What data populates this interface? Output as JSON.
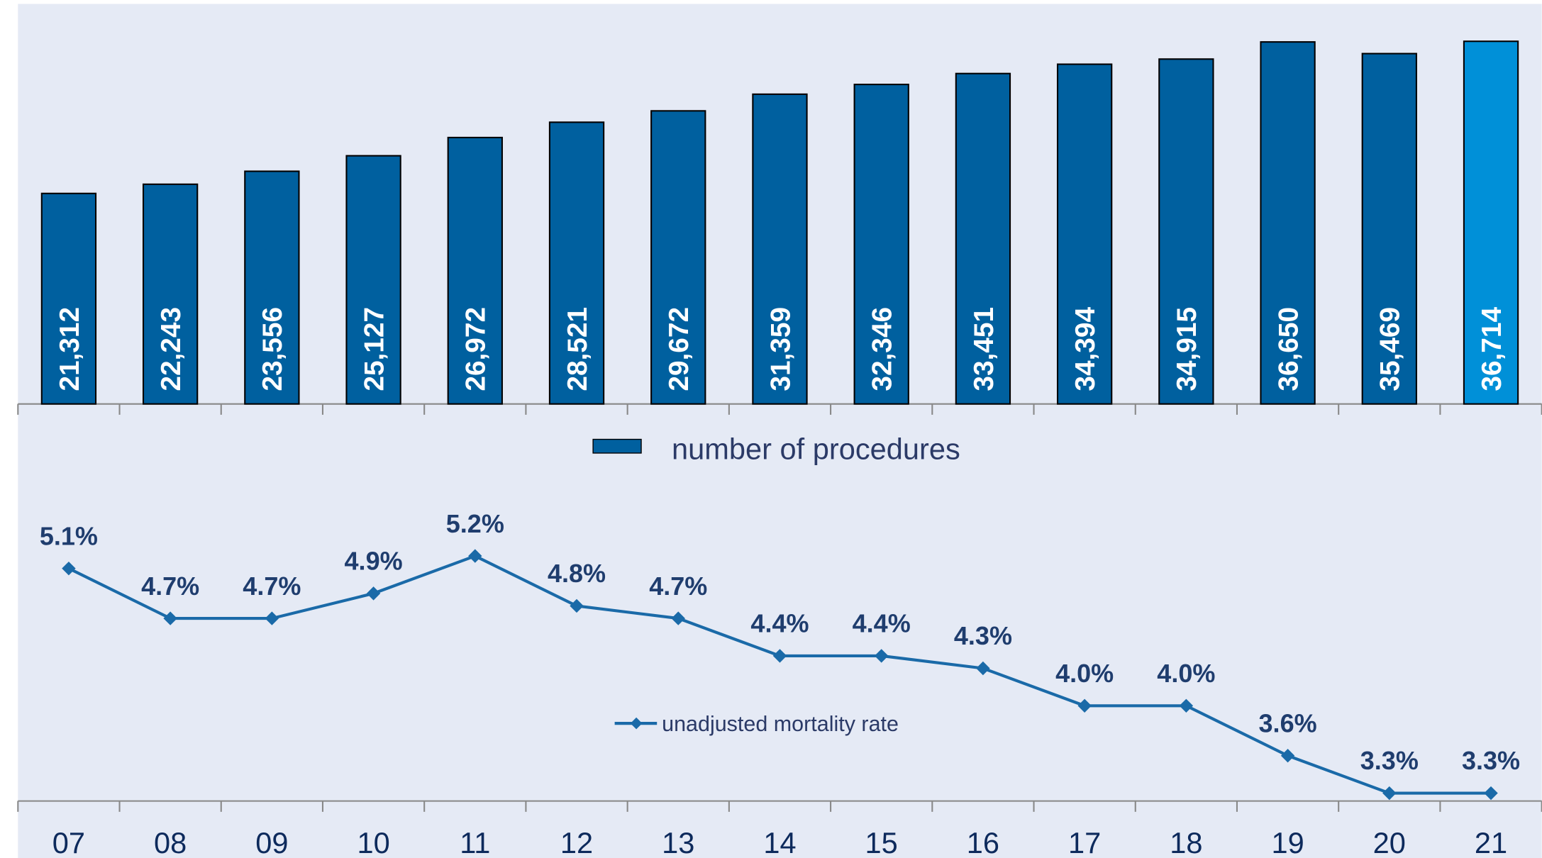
{
  "chart_data": {
    "type": "bar",
    "categories": [
      "07",
      "08",
      "09",
      "10",
      "11",
      "12",
      "13",
      "14",
      "15",
      "16",
      "17",
      "18",
      "19",
      "20",
      "21"
    ],
    "ylim": [
      0,
      40000
    ],
    "y2lim": [
      3.2,
      5.6
    ],
    "series": [
      {
        "name": "number of procedures",
        "type": "bar",
        "color": "#00609f",
        "colors": [
          "#00609f",
          "#00609f",
          "#00609f",
          "#00609f",
          "#00609f",
          "#00609f",
          "#00609f",
          "#00609f",
          "#00609f",
          "#00609f",
          "#00609f",
          "#00609f",
          "#00609f",
          "#00609f",
          "#0090d8"
        ],
        "values": [
          21312,
          22243,
          23556,
          25127,
          26972,
          28521,
          29672,
          31359,
          32346,
          33451,
          34394,
          34915,
          36650,
          35469,
          36714
        ],
        "value_labels": [
          "21,312",
          "22,243",
          "23,556",
          "25,127",
          "26,972",
          "28,521",
          "29,672",
          "31,359",
          "32,346",
          "33,451",
          "34,394",
          "34,915",
          "36,650",
          "35,469",
          "36,714"
        ]
      },
      {
        "name": "unadjusted mortality rate",
        "type": "line",
        "axis": "y2",
        "color": "#1a6aa8",
        "values": [
          5.1,
          4.7,
          4.7,
          4.9,
          5.2,
          4.8,
          4.7,
          4.4,
          4.4,
          4.3,
          4.0,
          4.0,
          3.6,
          3.3,
          3.3
        ],
        "value_labels": [
          "5.1%",
          "4.7%",
          "4.7%",
          "4.9%",
          "5.2%",
          "4.8%",
          "4.7%",
          "4.4%",
          "4.4%",
          "4.3%",
          "4.0%",
          "4.0%",
          "3.6%",
          "3.3%",
          "3.3%"
        ]
      }
    ]
  }
}
